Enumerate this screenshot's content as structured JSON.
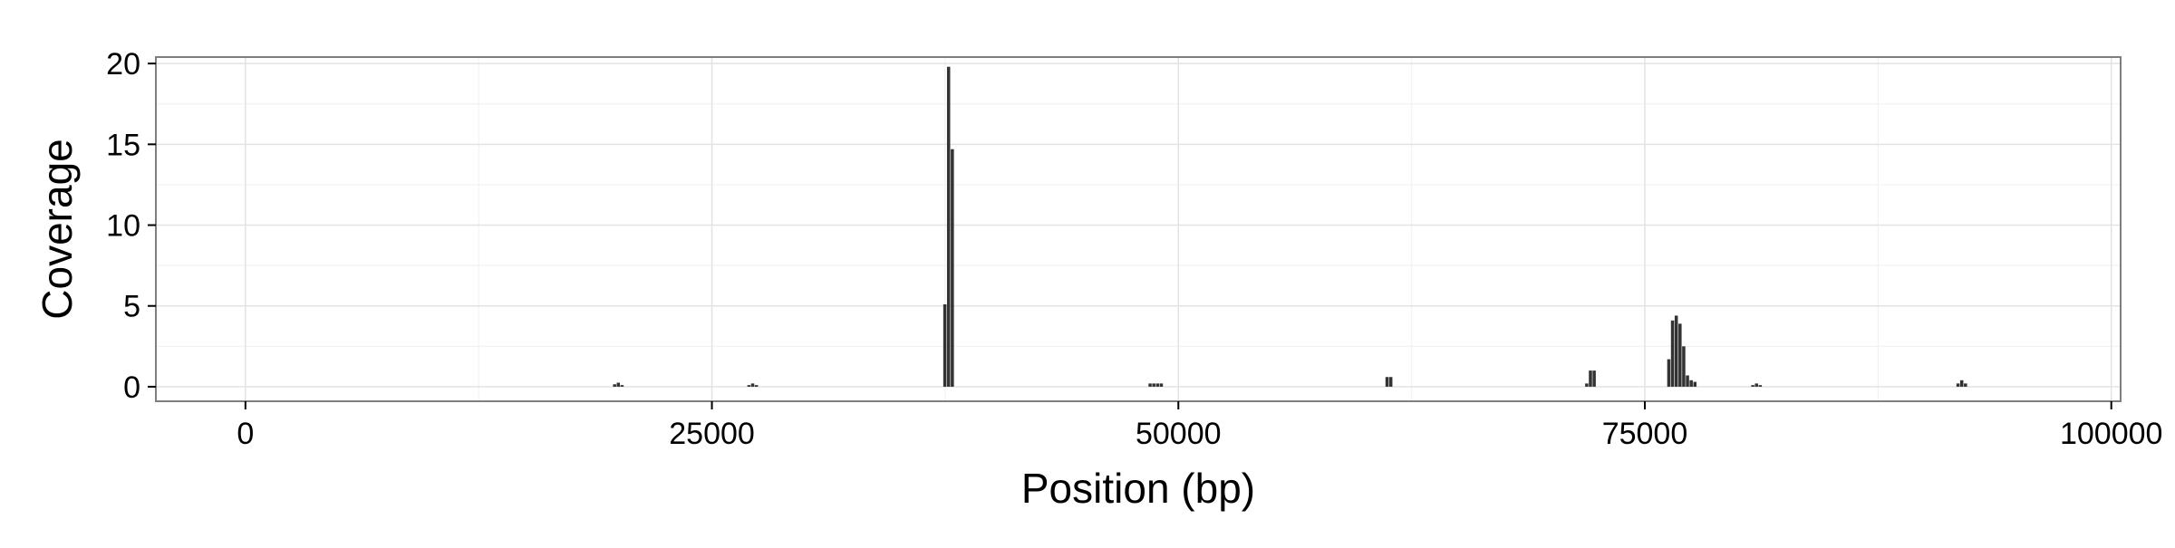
{
  "chart_data": {
    "type": "bar",
    "title": "",
    "xlabel": "Position (bp)",
    "ylabel": "Coverage",
    "xlim": [
      -4800,
      100500
    ],
    "ylim": [
      -0.9,
      20.4
    ],
    "x_ticks": [
      0,
      25000,
      50000,
      75000,
      100000
    ],
    "x_tick_labels": [
      "0",
      "25000",
      "50000",
      "75000",
      "100000"
    ],
    "y_ticks": [
      0,
      5,
      10,
      15,
      20
    ],
    "y_tick_labels": [
      "0",
      "5",
      "10",
      "15",
      "20"
    ],
    "bin_width": 200,
    "bar_color": "#333333",
    "grid": true,
    "legend": "none",
    "x": [
      19800,
      20000,
      20200,
      27000,
      27200,
      27400,
      37500,
      37700,
      37900,
      48500,
      48700,
      48900,
      49100,
      61200,
      61400,
      71900,
      72100,
      72300,
      76300,
      76500,
      76700,
      76900,
      77100,
      77300,
      77500,
      77700,
      80800,
      81000,
      81200,
      91800,
      92000,
      92200
    ],
    "values": [
      0.15,
      0.25,
      0.1,
      0.1,
      0.2,
      0.1,
      5.1,
      19.8,
      14.7,
      0.2,
      0.2,
      0.2,
      0.2,
      0.6,
      0.6,
      0.2,
      1.0,
      1.0,
      1.7,
      4.1,
      4.4,
      3.9,
      2.5,
      0.7,
      0.4,
      0.3,
      0.1,
      0.2,
      0.1,
      0.2,
      0.4,
      0.2
    ]
  }
}
